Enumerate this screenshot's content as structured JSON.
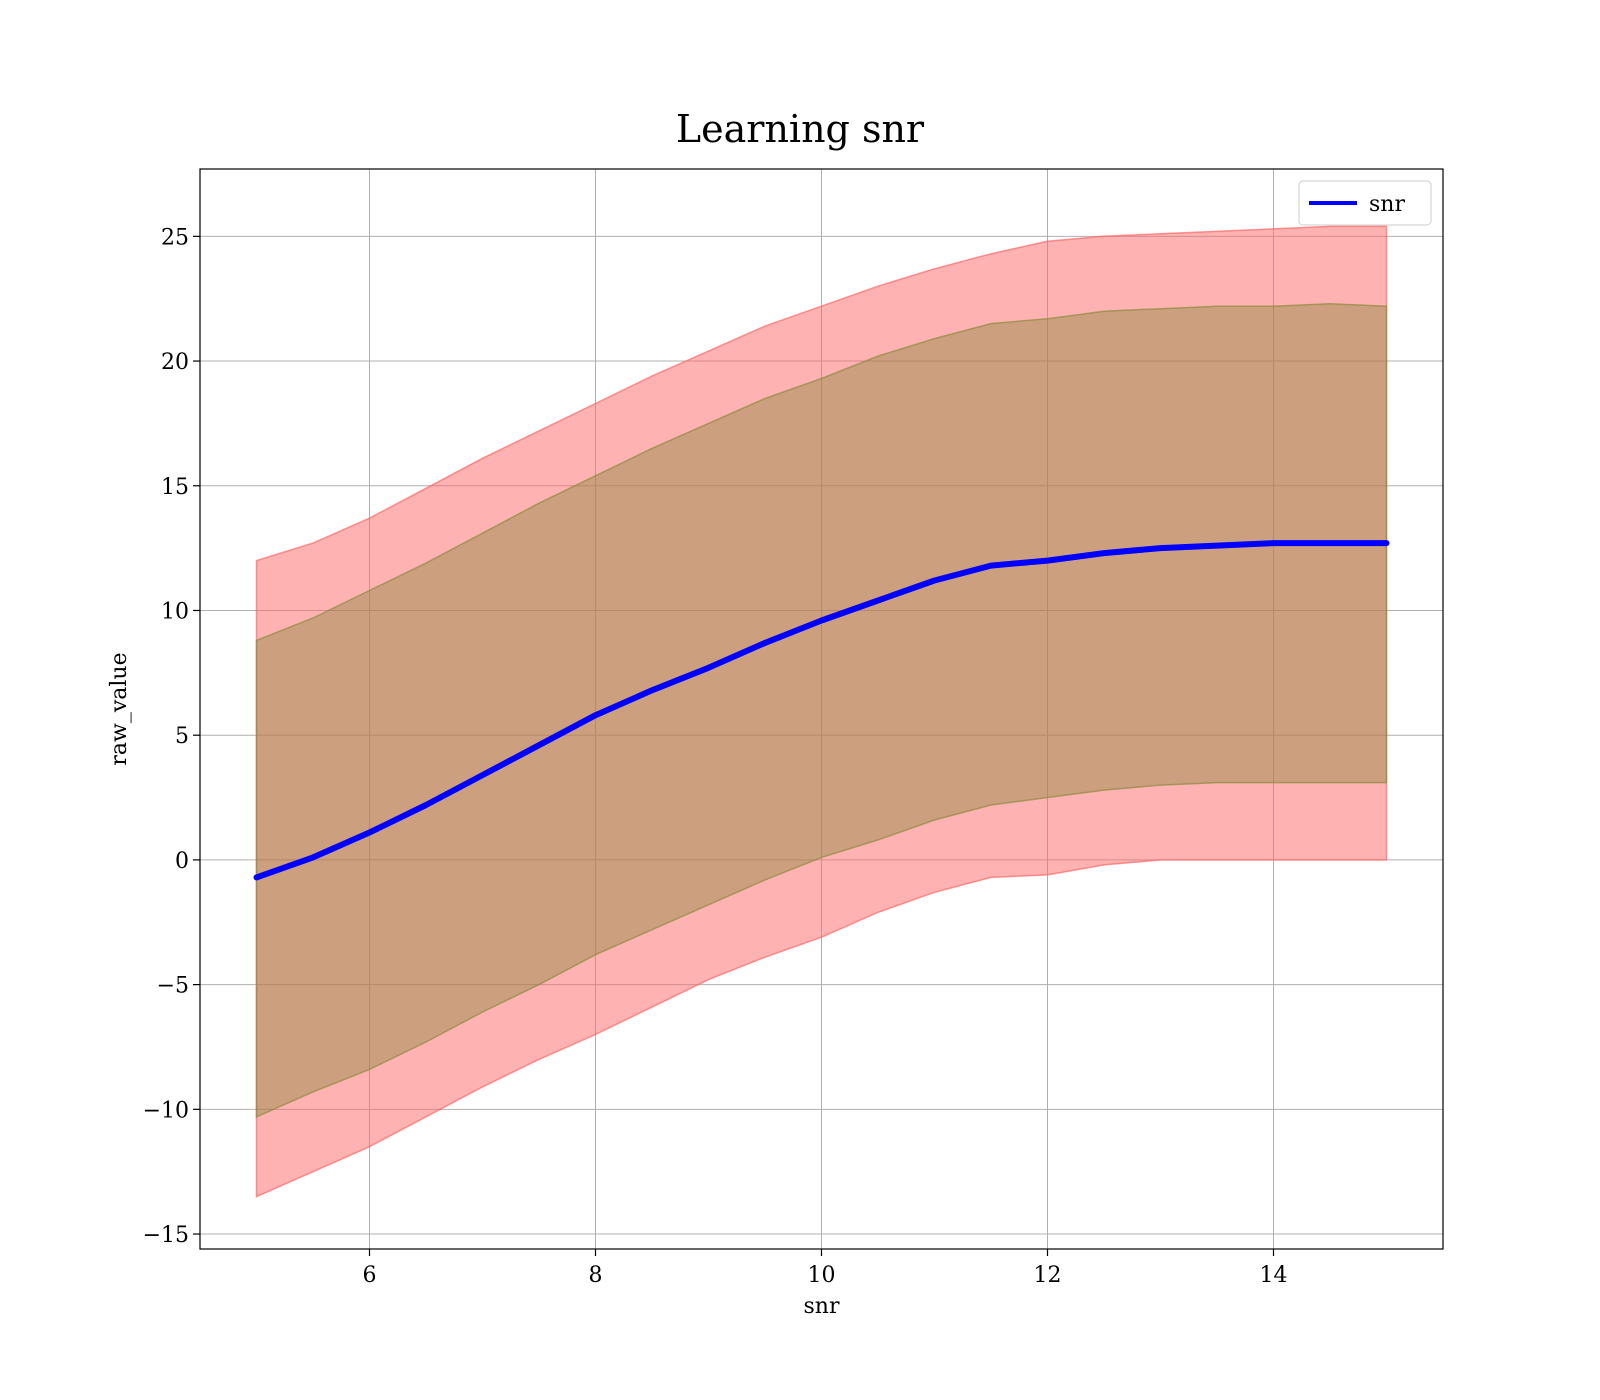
{
  "chart_data": {
    "type": "line",
    "title": "Learning snr",
    "xlabel": "snr",
    "ylabel": "raw_value",
    "xlim": [
      4.5,
      15.5
    ],
    "ylim": [
      -15.6,
      27.7
    ],
    "xticks": [
      6,
      8,
      10,
      12,
      14
    ],
    "yticks": [
      -15,
      -10,
      -5,
      0,
      5,
      10,
      15,
      20,
      25
    ],
    "ytick_labels": [
      "−15",
      "−10",
      "−5",
      "0",
      "5",
      "10",
      "15",
      "20",
      "25"
    ],
    "grid": true,
    "legend": {
      "position": "top-right"
    },
    "x": [
      5,
      5.5,
      6,
      6.5,
      7,
      7.5,
      8,
      8.5,
      9,
      9.5,
      10,
      10.5,
      11,
      11.5,
      12,
      12.5,
      13,
      13.5,
      14,
      14.5,
      15
    ],
    "series": [
      {
        "name": "snr",
        "color": "#0000ff",
        "values": [
          -0.7,
          0.1,
          1.1,
          2.2,
          3.4,
          4.6,
          5.8,
          6.8,
          7.7,
          8.7,
          9.6,
          10.4,
          11.2,
          11.8,
          12.0,
          12.3,
          12.5,
          12.6,
          12.7,
          12.7,
          12.7
        ]
      }
    ],
    "bands": [
      {
        "color": "#ff6666",
        "opacity": 0.5,
        "lower": [
          -13.5,
          -12.5,
          -11.5,
          -10.3,
          -9.1,
          -8.0,
          -7.0,
          -5.9,
          -4.8,
          -3.9,
          -3.1,
          -2.1,
          -1.3,
          -0.7,
          -0.6,
          -0.2,
          0.0,
          0.0,
          0.0,
          0.0,
          0.0
        ],
        "upper": [
          12.0,
          12.7,
          13.7,
          14.9,
          16.1,
          17.2,
          18.3,
          19.4,
          20.4,
          21.4,
          22.2,
          23.0,
          23.7,
          24.3,
          24.8,
          25.0,
          25.1,
          25.2,
          25.3,
          25.4,
          25.4
        ]
      },
      {
        "color": "#8d8a3e",
        "opacity": 0.45,
        "lower": [
          -10.3,
          -9.3,
          -8.4,
          -7.3,
          -6.1,
          -5.0,
          -3.8,
          -2.8,
          -1.8,
          -0.8,
          0.1,
          0.8,
          1.6,
          2.2,
          2.5,
          2.8,
          3.0,
          3.1,
          3.1,
          3.1,
          3.1
        ],
        "upper": [
          8.8,
          9.7,
          10.8,
          11.9,
          13.1,
          14.3,
          15.4,
          16.5,
          17.5,
          18.5,
          19.3,
          20.2,
          20.9,
          21.5,
          21.7,
          22.0,
          22.1,
          22.2,
          22.2,
          22.3,
          22.2
        ]
      }
    ]
  }
}
